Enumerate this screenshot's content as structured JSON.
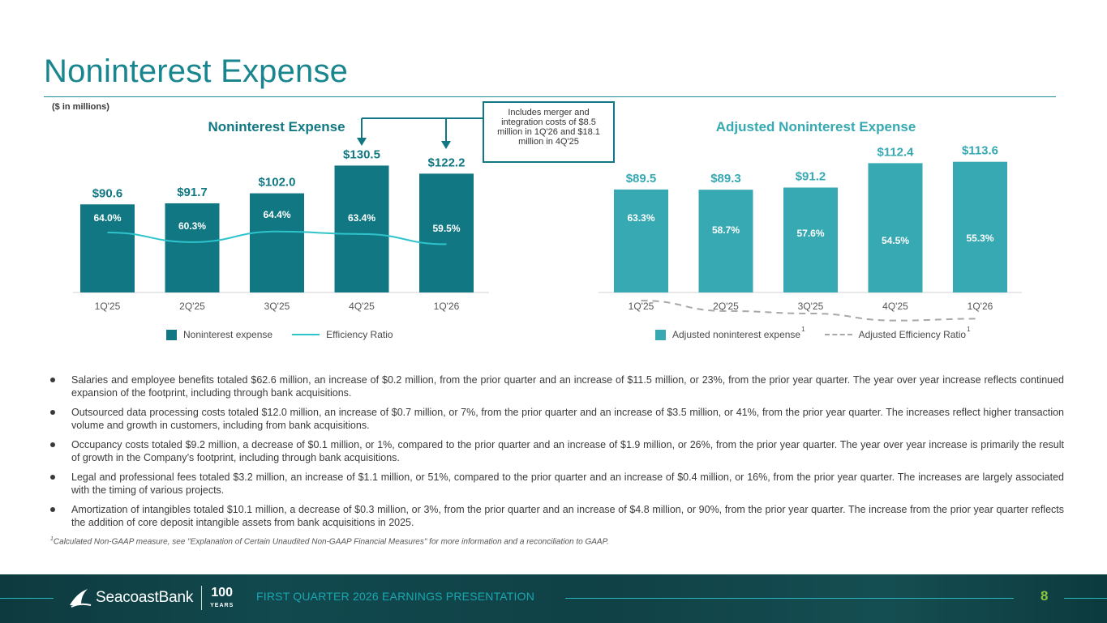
{
  "page": {
    "title": "Noninterest Expense",
    "units": "($ in millions)",
    "callout": "Includes merger and integration costs of $8.5 million in 1Q'26 and $18.1 million in 4Q'25",
    "footer": {
      "logo_text": "SeacoastBank",
      "years_number": "100",
      "years_label": "YEARS",
      "presentation": "FIRST QUARTER 2026 EARNINGS PRESENTATION",
      "page_number": "8"
    },
    "footnote_sup": "1",
    "footnote": "Calculated Non-GAAP measure, see \"Explanation of Certain Unaudited Non-GAAP Financial Measures\" for more information and a reconciliation to GAAP.",
    "bullets": [
      "Salaries and employee benefits totaled $62.6 million, an increase of $0.2 million, from the prior quarter and an increase of $11.5 million, or 23%, from the prior year quarter. The year over year increase reflects continued expansion of the footprint, including through bank acquisitions.",
      "Outsourced data processing costs totaled $12.0 million, an increase of $0.7 million, or 7%, from the prior quarter and an increase of $3.5 million, or 41%, from the prior year quarter. The increases reflect higher transaction volume and growth in customers, including from bank acquisitions.",
      "Occupancy costs totaled $9.2 million, a decrease of $0.1 million, or 1%, compared to the prior quarter and an increase of $1.9 million, or 26%, from the prior year quarter. The year over year increase is primarily the result of growth in the Company’s footprint, including through bank acquisitions.",
      "Legal and professional fees totaled $3.2 million, an increase of $1.1 million, or 51%, compared to the prior quarter and an increase of $0.4 million, or 16%, from the prior year quarter. The increases are largely associated with the timing of various projects.",
      "Amortization of intangibles totaled $10.1 million, a decrease of $0.3 million, or 3%, from the prior quarter and an increase of $4.8 million, or 90%, from the prior year quarter. The increase from the prior year quarter reflects the addition of core deposit intangible assets from bank acquisitions in 2025."
    ]
  },
  "colors": {
    "title": "#19868f",
    "bar_left": "#117883",
    "bar_right": "#36a9b3",
    "line_left": "#2ec4cc",
    "line_right": "#a8a8a8",
    "accent_green": "#8cc63f"
  },
  "chart_data": [
    {
      "type": "bar",
      "title": "Noninterest Expense",
      "categories": [
        "1Q'25",
        "2Q'25",
        "3Q'25",
        "4Q'25",
        "1Q'26"
      ],
      "series": [
        {
          "name": "Noninterest expense",
          "values": [
            90.6,
            91.7,
            102.0,
            130.5,
            122.2
          ],
          "labels": [
            "$90.6",
            "$91.7",
            "$102.0",
            "$130.5",
            "$122.2"
          ]
        },
        {
          "name": "Efficiency Ratio",
          "line": true,
          "values": [
            64.0,
            60.3,
            64.4,
            63.4,
            59.5
          ],
          "labels": [
            "64.0%",
            "60.3%",
            "64.4%",
            "63.4%",
            "59.5%"
          ]
        }
      ],
      "legend": [
        "Noninterest expense",
        "Efficiency Ratio"
      ],
      "legend_sup": [
        "",
        ""
      ],
      "ylim": [
        0,
        140
      ]
    },
    {
      "type": "bar",
      "title": "Adjusted Noninterest Expense",
      "categories": [
        "1Q'25",
        "2Q'25",
        "3Q'25",
        "4Q'25",
        "1Q'26"
      ],
      "series": [
        {
          "name": "Adjusted noninterest expense",
          "values": [
            89.5,
            89.3,
            91.2,
            112.4,
            113.6
          ],
          "labels": [
            "$89.5",
            "$89.3",
            "$91.2",
            "$112.4",
            "$113.6"
          ]
        },
        {
          "name": "Adjusted Efficiency Ratio",
          "line": true,
          "dashed": true,
          "values": [
            63.3,
            58.7,
            57.6,
            54.5,
            55.3
          ],
          "labels": [
            "63.3%",
            "58.7%",
            "57.6%",
            "54.5%",
            "55.3%"
          ]
        }
      ],
      "legend": [
        "Adjusted noninterest expense",
        "Adjusted Efficiency Ratio"
      ],
      "legend_sup": [
        "1",
        "1"
      ],
      "ylim": [
        0,
        140
      ]
    }
  ]
}
